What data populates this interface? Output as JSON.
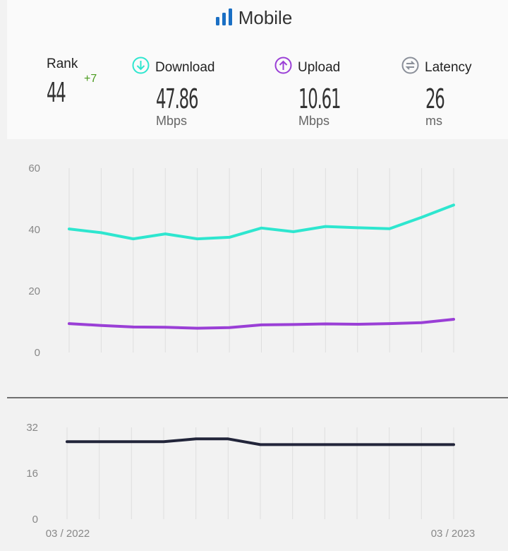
{
  "title": "Mobile",
  "stats": {
    "rank": {
      "label": "Rank",
      "value": "44",
      "change": "+7"
    },
    "download": {
      "label": "Download",
      "value": "47.86",
      "unit": "Mbps"
    },
    "upload": {
      "label": "Upload",
      "value": "10.61",
      "unit": "Mbps"
    },
    "latency": {
      "label": "Latency",
      "value": "26",
      "unit": "ms"
    }
  },
  "colors": {
    "download": "#2ee6cf",
    "upload": "#9a3fd6",
    "latency": "#22253a",
    "accent": "#1a6fc4"
  },
  "chart_data": [
    {
      "type": "line",
      "title": "",
      "ylim": [
        0,
        60
      ],
      "yticks": [
        0,
        20,
        40,
        60
      ],
      "series": [
        {
          "name": "Download",
          "values": [
            40.2,
            39.0,
            37.0,
            38.6,
            37.0,
            37.5,
            40.5,
            39.3,
            41.0,
            40.6,
            40.3,
            44.0,
            48.0
          ]
        },
        {
          "name": "Upload",
          "values": [
            9.4,
            8.8,
            8.3,
            8.2,
            7.9,
            8.1,
            9.0,
            9.1,
            9.3,
            9.2,
            9.4,
            9.7,
            10.8
          ]
        }
      ]
    },
    {
      "type": "line",
      "title": "",
      "ylim": [
        0,
        32
      ],
      "yticks": [
        0,
        16,
        32
      ],
      "xlabels": [
        "03 / 2022",
        "03 / 2023"
      ],
      "series": [
        {
          "name": "Latency",
          "values": [
            27,
            27,
            27,
            27,
            28,
            28,
            26,
            26,
            26,
            26,
            26,
            26,
            26
          ]
        }
      ]
    }
  ]
}
